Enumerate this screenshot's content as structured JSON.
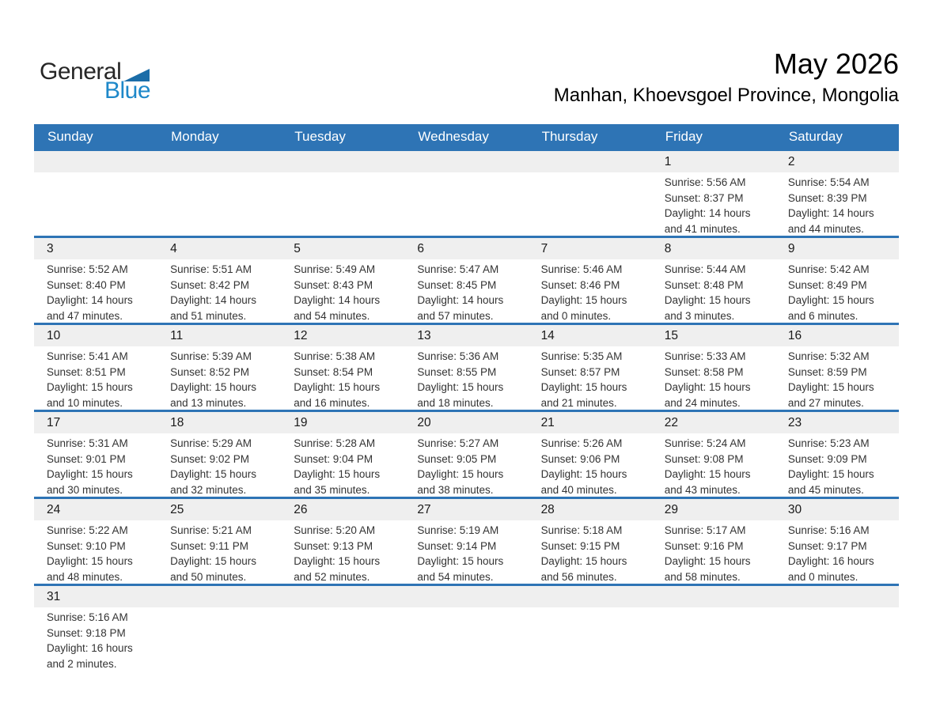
{
  "logo": {
    "word_general": "General",
    "word_blue": "Blue"
  },
  "header": {
    "title": "May 2026",
    "location": "Manhan, Khoevsgoel Province, Mongolia"
  },
  "colors": {
    "header_blue": "#2E74B5",
    "row_line_blue": "#2E74B5",
    "band_gray": "#EFEFEF",
    "logo_blue": "#1E88C9",
    "logo_triangle_blue": "#1B6DA8"
  },
  "weekdays": [
    "Sunday",
    "Monday",
    "Tuesday",
    "Wednesday",
    "Thursday",
    "Friday",
    "Saturday"
  ],
  "weeks": [
    [
      null,
      null,
      null,
      null,
      null,
      {
        "day": "1",
        "sunrise": "Sunrise: 5:56 AM",
        "sunset": "Sunset: 8:37 PM",
        "daylight": "Daylight: 14 hours and 41 minutes."
      },
      {
        "day": "2",
        "sunrise": "Sunrise: 5:54 AM",
        "sunset": "Sunset: 8:39 PM",
        "daylight": "Daylight: 14 hours and 44 minutes."
      }
    ],
    [
      {
        "day": "3",
        "sunrise": "Sunrise: 5:52 AM",
        "sunset": "Sunset: 8:40 PM",
        "daylight": "Daylight: 14 hours and 47 minutes."
      },
      {
        "day": "4",
        "sunrise": "Sunrise: 5:51 AM",
        "sunset": "Sunset: 8:42 PM",
        "daylight": "Daylight: 14 hours and 51 minutes."
      },
      {
        "day": "5",
        "sunrise": "Sunrise: 5:49 AM",
        "sunset": "Sunset: 8:43 PM",
        "daylight": "Daylight: 14 hours and 54 minutes."
      },
      {
        "day": "6",
        "sunrise": "Sunrise: 5:47 AM",
        "sunset": "Sunset: 8:45 PM",
        "daylight": "Daylight: 14 hours and 57 minutes."
      },
      {
        "day": "7",
        "sunrise": "Sunrise: 5:46 AM",
        "sunset": "Sunset: 8:46 PM",
        "daylight": "Daylight: 15 hours and 0 minutes."
      },
      {
        "day": "8",
        "sunrise": "Sunrise: 5:44 AM",
        "sunset": "Sunset: 8:48 PM",
        "daylight": "Daylight: 15 hours and 3 minutes."
      },
      {
        "day": "9",
        "sunrise": "Sunrise: 5:42 AM",
        "sunset": "Sunset: 8:49 PM",
        "daylight": "Daylight: 15 hours and 6 minutes."
      }
    ],
    [
      {
        "day": "10",
        "sunrise": "Sunrise: 5:41 AM",
        "sunset": "Sunset: 8:51 PM",
        "daylight": "Daylight: 15 hours and 10 minutes."
      },
      {
        "day": "11",
        "sunrise": "Sunrise: 5:39 AM",
        "sunset": "Sunset: 8:52 PM",
        "daylight": "Daylight: 15 hours and 13 minutes."
      },
      {
        "day": "12",
        "sunrise": "Sunrise: 5:38 AM",
        "sunset": "Sunset: 8:54 PM",
        "daylight": "Daylight: 15 hours and 16 minutes."
      },
      {
        "day": "13",
        "sunrise": "Sunrise: 5:36 AM",
        "sunset": "Sunset: 8:55 PM",
        "daylight": "Daylight: 15 hours and 18 minutes."
      },
      {
        "day": "14",
        "sunrise": "Sunrise: 5:35 AM",
        "sunset": "Sunset: 8:57 PM",
        "daylight": "Daylight: 15 hours and 21 minutes."
      },
      {
        "day": "15",
        "sunrise": "Sunrise: 5:33 AM",
        "sunset": "Sunset: 8:58 PM",
        "daylight": "Daylight: 15 hours and 24 minutes."
      },
      {
        "day": "16",
        "sunrise": "Sunrise: 5:32 AM",
        "sunset": "Sunset: 8:59 PM",
        "daylight": "Daylight: 15 hours and 27 minutes."
      }
    ],
    [
      {
        "day": "17",
        "sunrise": "Sunrise: 5:31 AM",
        "sunset": "Sunset: 9:01 PM",
        "daylight": "Daylight: 15 hours and 30 minutes."
      },
      {
        "day": "18",
        "sunrise": "Sunrise: 5:29 AM",
        "sunset": "Sunset: 9:02 PM",
        "daylight": "Daylight: 15 hours and 32 minutes."
      },
      {
        "day": "19",
        "sunrise": "Sunrise: 5:28 AM",
        "sunset": "Sunset: 9:04 PM",
        "daylight": "Daylight: 15 hours and 35 minutes."
      },
      {
        "day": "20",
        "sunrise": "Sunrise: 5:27 AM",
        "sunset": "Sunset: 9:05 PM",
        "daylight": "Daylight: 15 hours and 38 minutes."
      },
      {
        "day": "21",
        "sunrise": "Sunrise: 5:26 AM",
        "sunset": "Sunset: 9:06 PM",
        "daylight": "Daylight: 15 hours and 40 minutes."
      },
      {
        "day": "22",
        "sunrise": "Sunrise: 5:24 AM",
        "sunset": "Sunset: 9:08 PM",
        "daylight": "Daylight: 15 hours and 43 minutes."
      },
      {
        "day": "23",
        "sunrise": "Sunrise: 5:23 AM",
        "sunset": "Sunset: 9:09 PM",
        "daylight": "Daylight: 15 hours and 45 minutes."
      }
    ],
    [
      {
        "day": "24",
        "sunrise": "Sunrise: 5:22 AM",
        "sunset": "Sunset: 9:10 PM",
        "daylight": "Daylight: 15 hours and 48 minutes."
      },
      {
        "day": "25",
        "sunrise": "Sunrise: 5:21 AM",
        "sunset": "Sunset: 9:11 PM",
        "daylight": "Daylight: 15 hours and 50 minutes."
      },
      {
        "day": "26",
        "sunrise": "Sunrise: 5:20 AM",
        "sunset": "Sunset: 9:13 PM",
        "daylight": "Daylight: 15 hours and 52 minutes."
      },
      {
        "day": "27",
        "sunrise": "Sunrise: 5:19 AM",
        "sunset": "Sunset: 9:14 PM",
        "daylight": "Daylight: 15 hours and 54 minutes."
      },
      {
        "day": "28",
        "sunrise": "Sunrise: 5:18 AM",
        "sunset": "Sunset: 9:15 PM",
        "daylight": "Daylight: 15 hours and 56 minutes."
      },
      {
        "day": "29",
        "sunrise": "Sunrise: 5:17 AM",
        "sunset": "Sunset: 9:16 PM",
        "daylight": "Daylight: 15 hours and 58 minutes."
      },
      {
        "day": "30",
        "sunrise": "Sunrise: 5:16 AM",
        "sunset": "Sunset: 9:17 PM",
        "daylight": "Daylight: 16 hours and 0 minutes."
      }
    ],
    [
      {
        "day": "31",
        "sunrise": "Sunrise: 5:16 AM",
        "sunset": "Sunset: 9:18 PM",
        "daylight": "Daylight: 16 hours and 2 minutes."
      },
      null,
      null,
      null,
      null,
      null,
      null
    ]
  ]
}
